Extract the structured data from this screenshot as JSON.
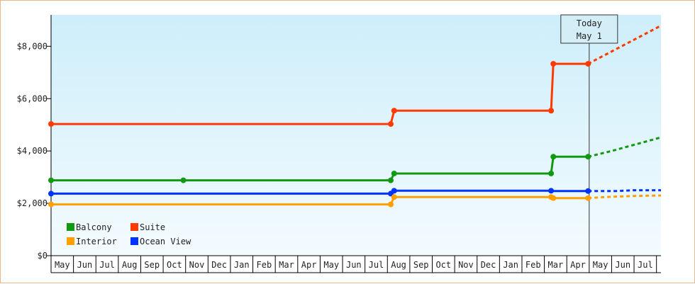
{
  "chart_data": {
    "type": "line",
    "title": "",
    "xlabel": "",
    "ylabel": "",
    "ylim": [
      0,
      9200
    ],
    "y_ticks": [
      "$0",
      "$2,000",
      "$4,000",
      "$6,000",
      "$8,000"
    ],
    "y_tick_values": [
      0,
      2000,
      4000,
      6000,
      8000
    ],
    "x_range": [
      0,
      27.2
    ],
    "month_labels": [
      "May",
      "Jun",
      "Jul",
      "Aug",
      "Sep",
      "Oct",
      "Nov",
      "Dec",
      "Jan",
      "Feb",
      "Mar",
      "Apr",
      "May",
      "Jun",
      "Jul",
      "Aug",
      "Sep",
      "Oct",
      "Nov",
      "Dec",
      "Jan",
      "Feb",
      "Mar",
      "Apr",
      "May",
      "Jun",
      "Jul"
    ],
    "today": {
      "label_line1": "Today",
      "label_line2": "May 1",
      "x": 24
    },
    "legend_position": "bottom-left",
    "grid": false,
    "background_gradient": [
      "#cdeefa",
      "#f4fbff"
    ],
    "series": [
      {
        "name": "Suite",
        "color": "#ff3a00",
        "steps": [
          [
            0,
            5030
          ],
          [
            15.15,
            5030
          ],
          [
            15.3,
            5540
          ],
          [
            22.3,
            5540
          ],
          [
            22.4,
            7330
          ],
          [
            23.95,
            7330
          ]
        ],
        "markers": [
          [
            0,
            5030
          ],
          [
            15.15,
            5030
          ],
          [
            15.3,
            5540
          ],
          [
            22.3,
            5540
          ],
          [
            22.4,
            7330
          ],
          [
            23.95,
            7330
          ]
        ],
        "forecast": [
          [
            23.95,
            7330
          ],
          [
            27.2,
            8790
          ]
        ]
      },
      {
        "name": "Balcony",
        "color": "#119911",
        "steps": [
          [
            0,
            2880
          ],
          [
            15.15,
            2880
          ],
          [
            15.3,
            3140
          ],
          [
            22.3,
            3140
          ],
          [
            22.4,
            3780
          ],
          [
            23.95,
            3780
          ]
        ],
        "markers": [
          [
            0,
            2880
          ],
          [
            5.9,
            2880
          ],
          [
            15.15,
            2880
          ],
          [
            15.3,
            3140
          ],
          [
            22.3,
            3140
          ],
          [
            22.4,
            3780
          ],
          [
            23.95,
            3780
          ]
        ],
        "forecast": [
          [
            23.95,
            3780
          ],
          [
            25.0,
            4000
          ],
          [
            27.2,
            4520
          ]
        ]
      },
      {
        "name": "Ocean View",
        "color": "#0033ff",
        "steps": [
          [
            0,
            2370
          ],
          [
            15.15,
            2370
          ],
          [
            15.3,
            2480
          ],
          [
            22.3,
            2480
          ],
          [
            22.4,
            2470
          ],
          [
            23.95,
            2470
          ]
        ],
        "markers": [
          [
            0,
            2370
          ],
          [
            15.15,
            2370
          ],
          [
            15.3,
            2480
          ],
          [
            22.3,
            2480
          ],
          [
            23.95,
            2470
          ]
        ],
        "forecast": [
          [
            23.95,
            2470
          ],
          [
            25.2,
            2470
          ],
          [
            26.0,
            2500
          ],
          [
            27.2,
            2500
          ]
        ]
      },
      {
        "name": "Interior",
        "color": "#ff9f00",
        "steps": [
          [
            0,
            1960
          ],
          [
            15.15,
            1960
          ],
          [
            15.3,
            2240
          ],
          [
            22.3,
            2240
          ],
          [
            22.4,
            2200
          ],
          [
            23.95,
            2200
          ]
        ],
        "markers": [
          [
            0,
            1960
          ],
          [
            15.15,
            1960
          ],
          [
            15.3,
            2240
          ],
          [
            22.3,
            2240
          ],
          [
            22.4,
            2200
          ],
          [
            23.95,
            2200
          ]
        ],
        "forecast": [
          [
            23.95,
            2200
          ],
          [
            25.0,
            2250
          ],
          [
            26.0,
            2280
          ],
          [
            27.2,
            2300
          ]
        ]
      }
    ],
    "legend": [
      {
        "name": "Balcony",
        "color": "#119911"
      },
      {
        "name": "Suite",
        "color": "#ff3a00"
      },
      {
        "name": "Interior",
        "color": "#ff9f00"
      },
      {
        "name": "Ocean View",
        "color": "#0033ff"
      }
    ]
  }
}
